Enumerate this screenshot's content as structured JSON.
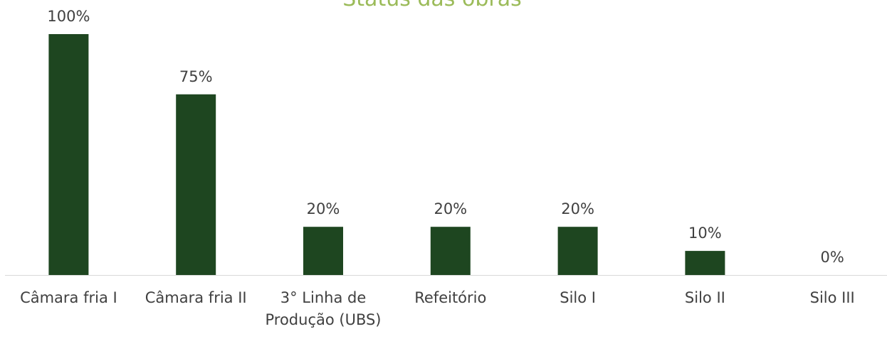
{
  "chart_data": {
    "type": "bar",
    "title": "Status das obras",
    "categories": [
      "Câmara fria I",
      "Câmara fria II",
      "3° Linha de Produção (UBS)",
      "Refeitório",
      "Silo I",
      "Silo II",
      "Silo III"
    ],
    "values": [
      100,
      75,
      20,
      20,
      20,
      10,
      0
    ],
    "value_labels": [
      "100%",
      "75%",
      "20%",
      "20%",
      "20%",
      "10%",
      "0%"
    ],
    "color": "#1e4620",
    "ylim": [
      0,
      100
    ]
  }
}
